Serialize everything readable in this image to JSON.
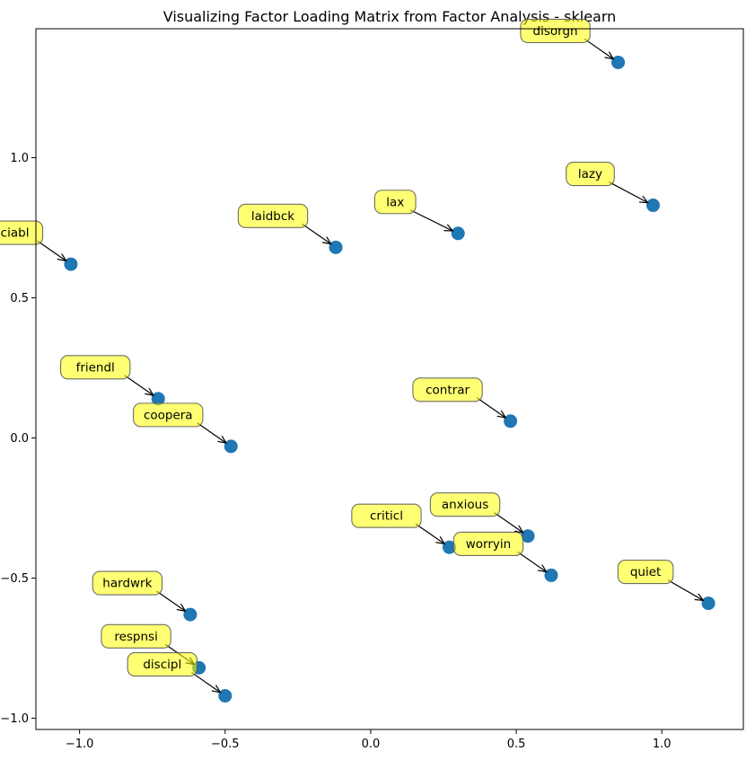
{
  "chart_data": {
    "type": "scatter",
    "title": "Visualizing Factor Loading Matrix from Factor Analysis - sklearn",
    "xlabel": "",
    "ylabel": "",
    "xlim": [
      -1.15,
      1.28
    ],
    "ylim": [
      -1.04,
      1.46
    ],
    "xticks": [
      -1.0,
      -0.5,
      0.0,
      0.5,
      1.0
    ],
    "xtick_labels": [
      "−1.0",
      "−0.5",
      "0.0",
      "0.5",
      "1.0"
    ],
    "yticks": [
      -1.0,
      -0.5,
      0.0,
      0.5,
      1.0
    ],
    "ytick_labels": [
      "−1.0",
      "−0.5",
      "0.0",
      "0.5",
      "1.0"
    ],
    "grid": false,
    "marker_color": "#1f77b4",
    "label_box_color": "#ffff00",
    "points": [
      {
        "label": "disorgn",
        "x": 0.85,
        "y": 1.34
      },
      {
        "label": "lazy",
        "x": 0.97,
        "y": 0.83
      },
      {
        "label": "lax",
        "x": 0.3,
        "y": 0.73
      },
      {
        "label": "laidbck",
        "x": -0.12,
        "y": 0.68
      },
      {
        "label": "sociabl",
        "x": -1.03,
        "y": 0.62
      },
      {
        "label": "friendl",
        "x": -0.73,
        "y": 0.14
      },
      {
        "label": "coopera",
        "x": -0.48,
        "y": -0.03
      },
      {
        "label": "contrar",
        "x": 0.48,
        "y": 0.06
      },
      {
        "label": "criticl",
        "x": 0.27,
        "y": -0.39
      },
      {
        "label": "anxious",
        "x": 0.54,
        "y": -0.35
      },
      {
        "label": "worryin",
        "x": 0.62,
        "y": -0.49
      },
      {
        "label": "quiet",
        "x": 1.16,
        "y": -0.59
      },
      {
        "label": "hardwrk",
        "x": -0.62,
        "y": -0.63
      },
      {
        "label": "respnsi",
        "x": -0.59,
        "y": -0.82
      },
      {
        "label": "discipl",
        "x": -0.5,
        "y": -0.92
      }
    ]
  }
}
